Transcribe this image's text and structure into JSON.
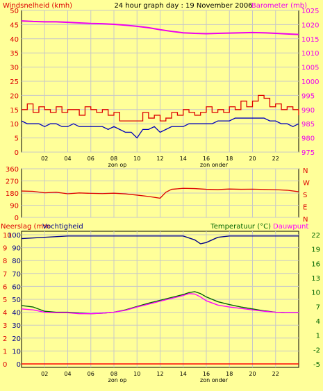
{
  "chart_data": [
    {
      "type": "line",
      "header_title": "24 hour graph day : 19 November 2006",
      "left_label": "Windsnelheid (kmh)",
      "right_label": "Barometer (mb)",
      "left_ticks": [
        0,
        5,
        10,
        15,
        20,
        25,
        30,
        35,
        40,
        45,
        50
      ],
      "right_ticks": [
        975,
        980,
        985,
        990,
        995,
        1000,
        1005,
        1010,
        1015,
        1020,
        1025
      ],
      "ylim_left": [
        0,
        50
      ],
      "ylim_right": [
        975,
        1025
      ],
      "x_ticks": [
        "02",
        "04",
        "06",
        "08",
        "10",
        "12",
        "14",
        "16",
        "18",
        "20",
        "22"
      ],
      "annotations": [
        "zon op",
        "zon onder"
      ],
      "colors": {
        "gust": "#dd0000",
        "wind": "#0000bb",
        "barometer": "#ee00ee"
      },
      "series": [
        {
          "key": "barometer",
          "axis": "right",
          "x": [
            0,
            1,
            2,
            3,
            4,
            5,
            6,
            7,
            8,
            9,
            10,
            11,
            12,
            13,
            14,
            15,
            16,
            17,
            18,
            19,
            20,
            21,
            22,
            23,
            24
          ],
          "values": [
            1021.3,
            1021.1,
            1021.0,
            1021.0,
            1020.8,
            1020.6,
            1020.4,
            1020.3,
            1020.1,
            1019.8,
            1019.4,
            1018.9,
            1018.2,
            1017.6,
            1017.1,
            1016.9,
            1016.8,
            1016.9,
            1017.0,
            1017.1,
            1017.2,
            1017.1,
            1016.9,
            1016.7,
            1016.5
          ]
        },
        {
          "key": "gust",
          "axis": "left",
          "step": true,
          "x": [
            0,
            0.5,
            1,
            1.5,
            2,
            2.5,
            3,
            3.5,
            4,
            4.5,
            5,
            5.5,
            6,
            6.5,
            7,
            7.5,
            8,
            8.5,
            9,
            9.5,
            10,
            10.5,
            11,
            11.5,
            12,
            12.5,
            13,
            13.5,
            14,
            14.5,
            15,
            15.5,
            16,
            16.5,
            17,
            17.5,
            18,
            18.5,
            19,
            19.5,
            20,
            20.5,
            21,
            21.5,
            22,
            22.5,
            23,
            23.5,
            24
          ],
          "values": [
            15,
            17,
            14,
            16,
            15,
            14,
            16,
            14,
            15,
            15,
            13,
            16,
            15,
            14,
            15,
            13,
            14,
            11,
            11,
            11,
            11,
            14,
            12,
            13,
            11,
            12,
            14,
            13,
            15,
            14,
            13,
            14,
            16,
            14,
            15,
            14,
            16,
            15,
            18,
            16,
            18,
            20,
            19,
            16,
            17,
            15,
            16,
            15,
            13
          ]
        },
        {
          "key": "wind",
          "axis": "left",
          "x": [
            0,
            0.5,
            1,
            1.5,
            2,
            2.5,
            3,
            3.5,
            4,
            4.5,
            5,
            5.5,
            6,
            6.5,
            7,
            7.5,
            8,
            8.5,
            9,
            9.5,
            10,
            10.5,
            11,
            11.5,
            12,
            12.5,
            13,
            13.5,
            14,
            14.5,
            15,
            15.5,
            16,
            16.5,
            17,
            17.5,
            18,
            18.5,
            19,
            19.5,
            20,
            20.5,
            21,
            21.5,
            22,
            22.5,
            23,
            23.5,
            24
          ],
          "values": [
            11,
            10,
            10,
            10,
            9,
            10,
            10,
            9,
            9,
            10,
            9,
            9,
            9,
            9,
            9,
            8,
            9,
            8,
            7,
            7,
            5,
            8,
            8,
            9,
            7,
            8,
            9,
            9,
            9,
            10,
            10,
            10,
            10,
            10,
            11,
            11,
            11,
            12,
            12,
            12,
            12,
            12,
            12,
            11,
            11,
            10,
            10,
            9,
            10
          ]
        }
      ]
    },
    {
      "type": "line",
      "left_ticks": [
        0,
        90,
        180,
        270,
        360
      ],
      "ylim": [
        0,
        360
      ],
      "right_letters": [
        "N",
        "W",
        "S",
        "E",
        "N"
      ],
      "colors": {
        "direction": "#dd0000"
      },
      "series": [
        {
          "key": "direction",
          "x": [
            0,
            1,
            2,
            3,
            4,
            5,
            6,
            7,
            8,
            9,
            10,
            11,
            12,
            12.5,
            13,
            14,
            15,
            16,
            17,
            18,
            19,
            20,
            21,
            22,
            23,
            24
          ],
          "values": [
            195,
            193,
            182,
            186,
            175,
            181,
            178,
            176,
            179,
            174,
            165,
            155,
            142,
            186,
            208,
            215,
            213,
            208,
            206,
            210,
            208,
            209,
            207,
            205,
            201,
            190
          ]
        }
      ]
    },
    {
      "type": "line",
      "label_rain": "Neerslag (mm",
      "label_humidity": "Vochtigheid",
      "label_temp": "Temperatuur (°C)",
      "label_dew": "Dauwpunt",
      "rain_ticks": [
        0,
        1,
        2,
        3,
        4,
        5,
        6,
        7,
        8,
        9,
        10
      ],
      "humidity_ticks": [
        0,
        10,
        20,
        30,
        40,
        50,
        60,
        70,
        80,
        90,
        100
      ],
      "temp_ticks": [
        -5,
        -2,
        1,
        4,
        7,
        10,
        13,
        16,
        19,
        22
      ],
      "ylim_humidity": [
        0,
        100
      ],
      "ylim_temp": [
        -5,
        22
      ],
      "x_ticks": [
        "02",
        "04",
        "06",
        "08",
        "10",
        "12",
        "14",
        "16",
        "18",
        "20",
        "22"
      ],
      "annotations": [
        "zon op",
        "zon onder"
      ],
      "colors": {
        "humidity": "#00008b",
        "temperature": "#006400",
        "dewpoint": "#ff00ff",
        "rain": "#ff0000"
      },
      "series": [
        {
          "key": "humidity",
          "axis": "humidity",
          "x": [
            0,
            2,
            4,
            6,
            8,
            10,
            12,
            14,
            15,
            15.5,
            16,
            16.5,
            17,
            18,
            20,
            22,
            24
          ],
          "values": [
            97,
            98,
            99,
            99,
            99,
            99,
            99,
            99,
            96,
            93,
            94,
            96,
            98,
            99,
            99,
            99,
            99
          ]
        },
        {
          "key": "temperature",
          "axis": "temp",
          "x": [
            0,
            1,
            2,
            3,
            4,
            5,
            6,
            7,
            8,
            9,
            10,
            11,
            12,
            13,
            14,
            14.5,
            15,
            15.5,
            16,
            17,
            18,
            19,
            20,
            21,
            22,
            23,
            24
          ],
          "values": [
            7.2,
            6.9,
            6.0,
            5.8,
            5.8,
            5.6,
            5.5,
            5.6,
            5.8,
            6.3,
            7.0,
            7.7,
            8.3,
            8.9,
            9.5,
            9.9,
            10.1,
            9.7,
            9.0,
            8.0,
            7.4,
            6.9,
            6.5,
            6.1,
            5.8,
            5.7,
            5.7
          ]
        },
        {
          "key": "dewpoint",
          "axis": "temp",
          "x": [
            0,
            1,
            2,
            3,
            4,
            5,
            6,
            7,
            8,
            9,
            10,
            11,
            12,
            13,
            14,
            14.5,
            15,
            15.5,
            16,
            17,
            18,
            19,
            20,
            21,
            22,
            23,
            24
          ],
          "values": [
            6.5,
            6.3,
            5.8,
            5.7,
            5.7,
            5.5,
            5.5,
            5.6,
            5.8,
            6.2,
            6.9,
            7.5,
            8.1,
            8.7,
            9.3,
            9.7,
            9.6,
            9.0,
            8.2,
            7.3,
            6.9,
            6.6,
            6.3,
            6.0,
            5.8,
            5.7,
            5.7
          ]
        },
        {
          "key": "rain",
          "axis": "rain",
          "x": [
            0,
            24
          ],
          "values": [
            0,
            0
          ]
        }
      ]
    }
  ]
}
